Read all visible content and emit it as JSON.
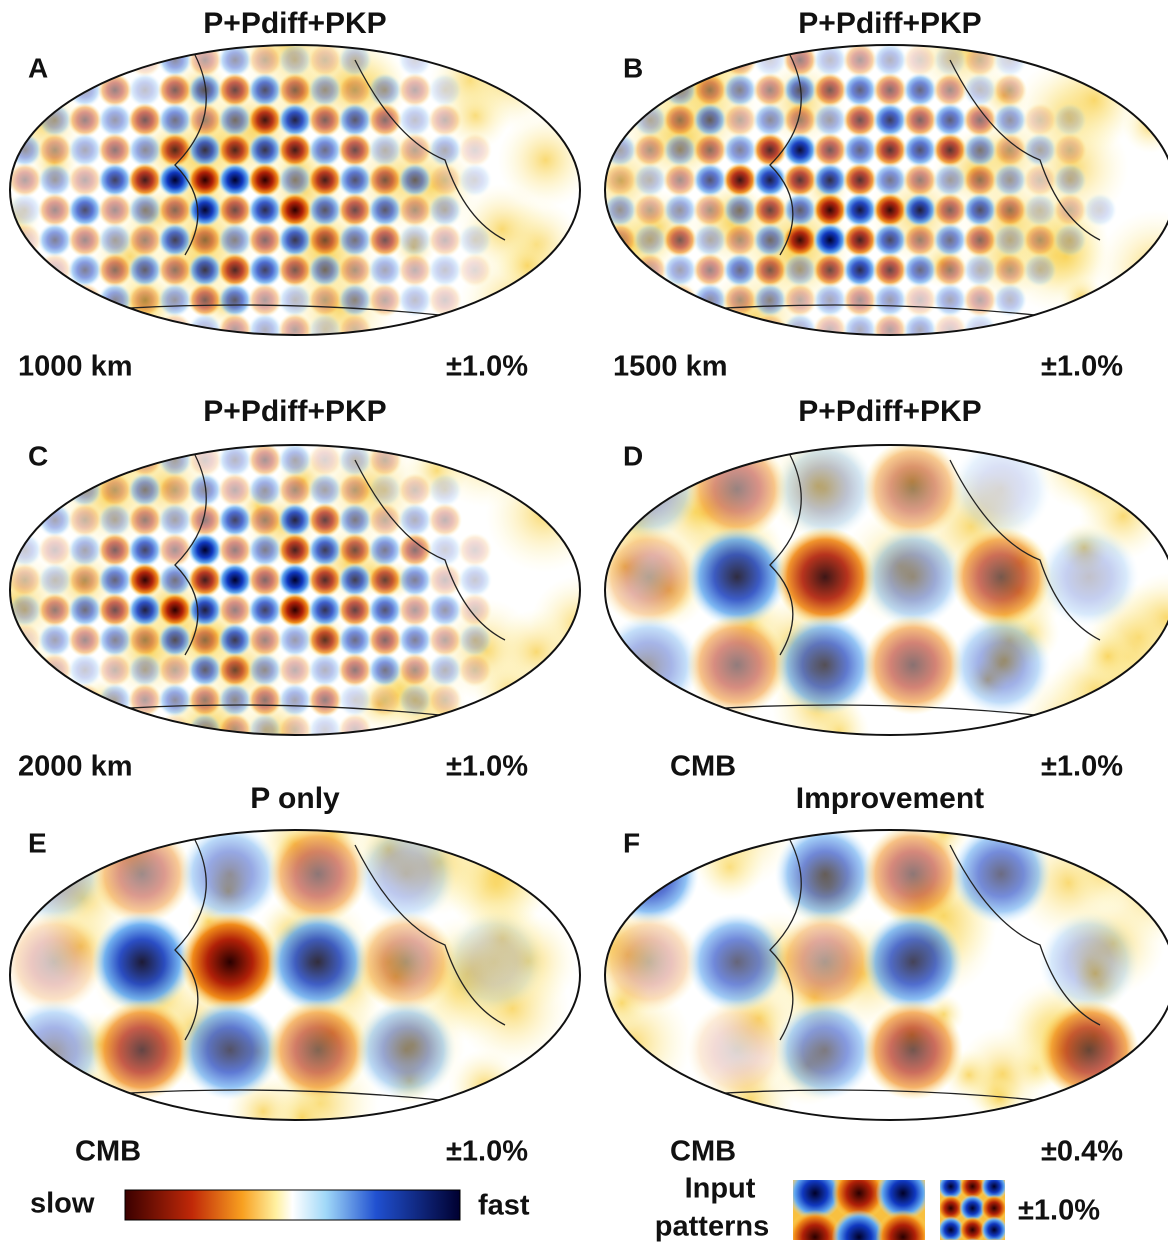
{
  "panels": [
    {
      "title": "P+Pdiff+PKP",
      "letter": "A",
      "depth": "1000 km",
      "range": "±1.0%"
    },
    {
      "title": "P+Pdiff+PKP",
      "letter": "B",
      "depth": "1500 km",
      "range": "±1.0%"
    },
    {
      "title": "P+Pdiff+PKP",
      "letter": "C",
      "depth": "2000 km",
      "range": "±1.0%"
    },
    {
      "title": "P+Pdiff+PKP",
      "letter": "D",
      "depth": "CMB",
      "range": "±1.0%"
    },
    {
      "title": "P only",
      "letter": "E",
      "depth": "CMB",
      "range": "±1.0%"
    },
    {
      "title": "Improvement",
      "letter": "F",
      "depth": "CMB",
      "range": "±0.4%"
    }
  ],
  "colorbar": {
    "left_label": "slow",
    "right_label": "fast"
  },
  "input_patterns": {
    "label_line1": "Input",
    "label_line2": "patterns",
    "range": "±1.0%"
  }
}
